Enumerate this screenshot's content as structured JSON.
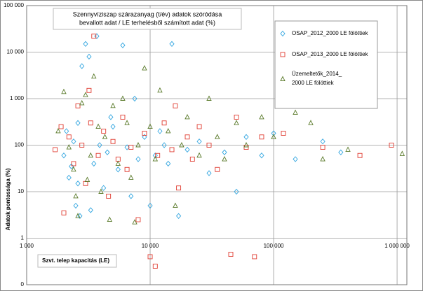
{
  "chart_data": {
    "type": "scatter",
    "title": [
      "Szennyvíziszap szárazanyag (t/év) adatok szóródása",
      "bevallott adat / LE terhelésből számított adat (%)"
    ],
    "x_label": "Szvt. telep kapacitás (LE)",
    "y_label": "Adatok pontossága (%)",
    "x_log": true,
    "y_log": true,
    "grid": true,
    "legend": "top-right",
    "xlim": [
      1000,
      1200000
    ],
    "xticks": [
      {
        "value": 1000,
        "label": "1 000"
      },
      {
        "value": 10000,
        "label": "10 000"
      },
      {
        "value": 100000,
        "label": "100 000"
      },
      {
        "value": 1000000,
        "label": "1 000 000"
      }
    ],
    "ylim": [
      0.1,
      100000
    ],
    "yticks": [
      {
        "value": 0.1,
        "label": "0"
      },
      1,
      10,
      100,
      {
        "value": 1000,
        "label": "1 000"
      },
      {
        "value": 10000,
        "label": "10 000"
      },
      {
        "value": 100000,
        "label": "100 000"
      }
    ],
    "series": [
      {
        "name": "OSAP_2012_2000 LE fölöttiek",
        "color": "#33a6e0",
        "marker": "diamond",
        "x": [
          2000,
          2200,
          2300,
          2400,
          2500,
          2600,
          2700,
          2800,
          3000,
          3200,
          3500,
          3700,
          3900,
          4200,
          4500,
          5000,
          5500,
          6000,
          6500,
          7000,
          8000,
          9000,
          10000,
          11000,
          12000,
          14000,
          15000,
          17000,
          20000,
          25000,
          30000,
          40000,
          50000,
          60000,
          80000,
          100000,
          150000,
          250000,
          350000,
          2100,
          2600,
          3300,
          4800,
          7500,
          13000
        ],
        "values": [
          60,
          20,
          35,
          120,
          5,
          300,
          3,
          5000,
          15000,
          8000,
          40,
          22000,
          100,
          12,
          70,
          250,
          30,
          14000,
          90,
          8,
          50,
          150,
          5,
          60,
          200,
          40,
          15000,
          3,
          80,
          120,
          25,
          70,
          10,
          150,
          60,
          180,
          50,
          120,
          70,
          200,
          15,
          4,
          400,
          1000,
          100
        ]
      },
      {
        "name": "OSAP_2013_2000 LE fölöttiek",
        "color": "#e03c31",
        "marker": "square",
        "x": [
          1700,
          1900,
          2000,
          2200,
          2400,
          2600,
          2800,
          3000,
          3300,
          3500,
          3800,
          4200,
          4600,
          5000,
          5500,
          6000,
          7000,
          8000,
          9000,
          10000,
          11000,
          11500,
          13000,
          15000,
          17000,
          20000,
          22000,
          25000,
          30000,
          35000,
          45000,
          50000,
          60000,
          70000,
          80000,
          120000,
          250000,
          500000,
          900000,
          3200,
          6500,
          16000
        ],
        "values": [
          80,
          250,
          3.5,
          150,
          40,
          700,
          100,
          15,
          300,
          22000,
          60,
          200,
          8,
          120,
          50,
          400,
          90,
          2.5,
          180,
          0.4,
          0.25,
          60,
          300,
          80,
          12,
          150,
          50,
          250,
          100,
          30,
          0.45,
          400,
          90,
          0.4,
          150,
          180,
          90,
          60,
          100,
          1500,
          30,
          700
        ]
      },
      {
        "name": "Üzemeltetők_2014_2000 LE fölöttiek",
        "color": "#5a7a2a",
        "marker": "triangle",
        "x": [
          1800,
          2000,
          2200,
          2400,
          2600,
          2800,
          3000,
          3300,
          3500,
          3800,
          4000,
          4300,
          4700,
          5000,
          5500,
          6000,
          6500,
          7000,
          8000,
          9000,
          10000,
          11000,
          12000,
          14000,
          16000,
          18000,
          20000,
          25000,
          30000,
          35000,
          40000,
          50000,
          60000,
          80000,
          100000,
          150000,
          200000,
          250000,
          400000,
          1100000,
          2500,
          7500,
          3100
        ],
        "values": [
          200,
          1400,
          90,
          30,
          3,
          800,
          1200,
          60,
          3000,
          250,
          10,
          150,
          2.5,
          700,
          40,
          1000,
          300,
          20,
          100,
          4500,
          250,
          50,
          1500,
          200,
          5,
          100,
          400,
          60,
          1000,
          150,
          50,
          300,
          100,
          400,
          150,
          500,
          300,
          50,
          80,
          65,
          8,
          2.2,
          18
        ]
      }
    ]
  }
}
